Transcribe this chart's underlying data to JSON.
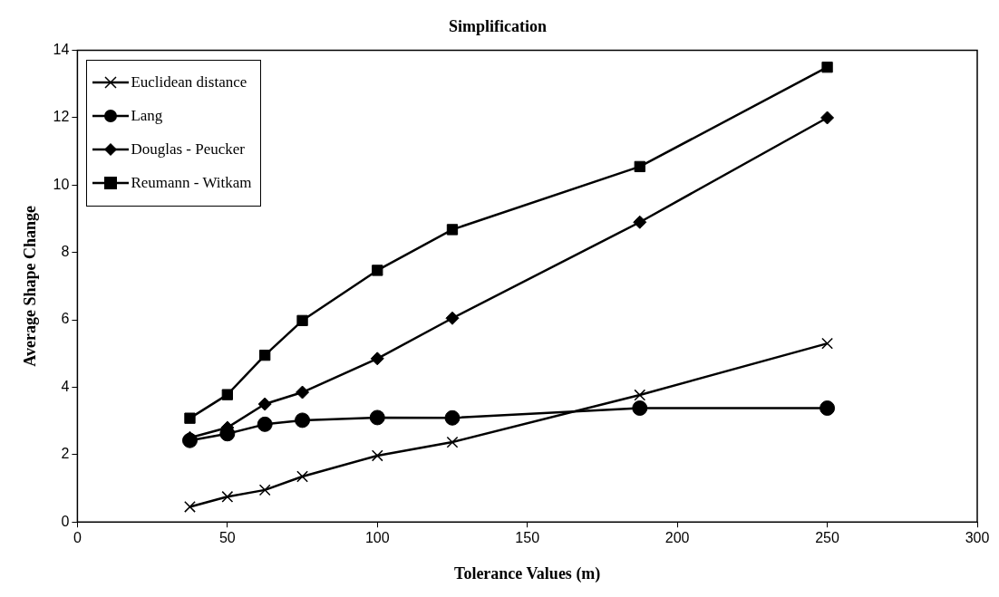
{
  "chart_data": {
    "type": "line",
    "title": "Simplification",
    "xlabel": "Tolerance Values (m)",
    "ylabel": "Average Shape Change",
    "x": [
      37.5,
      50,
      62.5,
      75,
      100,
      125,
      187.5,
      250
    ],
    "xlim": [
      0,
      300
    ],
    "xticks": [
      0,
      50,
      100,
      150,
      200,
      250,
      300
    ],
    "ylim": [
      0,
      14
    ],
    "yticks": [
      0,
      2,
      4,
      6,
      8,
      10,
      12,
      14
    ],
    "grid": false,
    "legend": "top left",
    "line_style": "solid",
    "series": [
      {
        "name": "Euclidean distance",
        "color": "#000000",
        "marker": "cross",
        "values": [
          0.45,
          0.75,
          0.95,
          1.35,
          1.97,
          2.37,
          3.77,
          5.3
        ]
      },
      {
        "name": "Lang",
        "color": "#000000",
        "marker": "circle",
        "values": [
          2.42,
          2.62,
          2.9,
          3.02,
          3.1,
          3.09,
          3.38,
          3.38
        ]
      },
      {
        "name": "Douglas - Peucker",
        "color": "#000000",
        "marker": "diamond",
        "values": [
          2.5,
          2.8,
          3.5,
          3.85,
          4.85,
          6.05,
          8.9,
          12.0
        ]
      },
      {
        "name": "Reumann - Witkam",
        "color": "#000000",
        "marker": "square",
        "values": [
          3.08,
          3.78,
          4.95,
          5.98,
          7.47,
          8.68,
          10.55,
          13.5
        ]
      }
    ]
  }
}
